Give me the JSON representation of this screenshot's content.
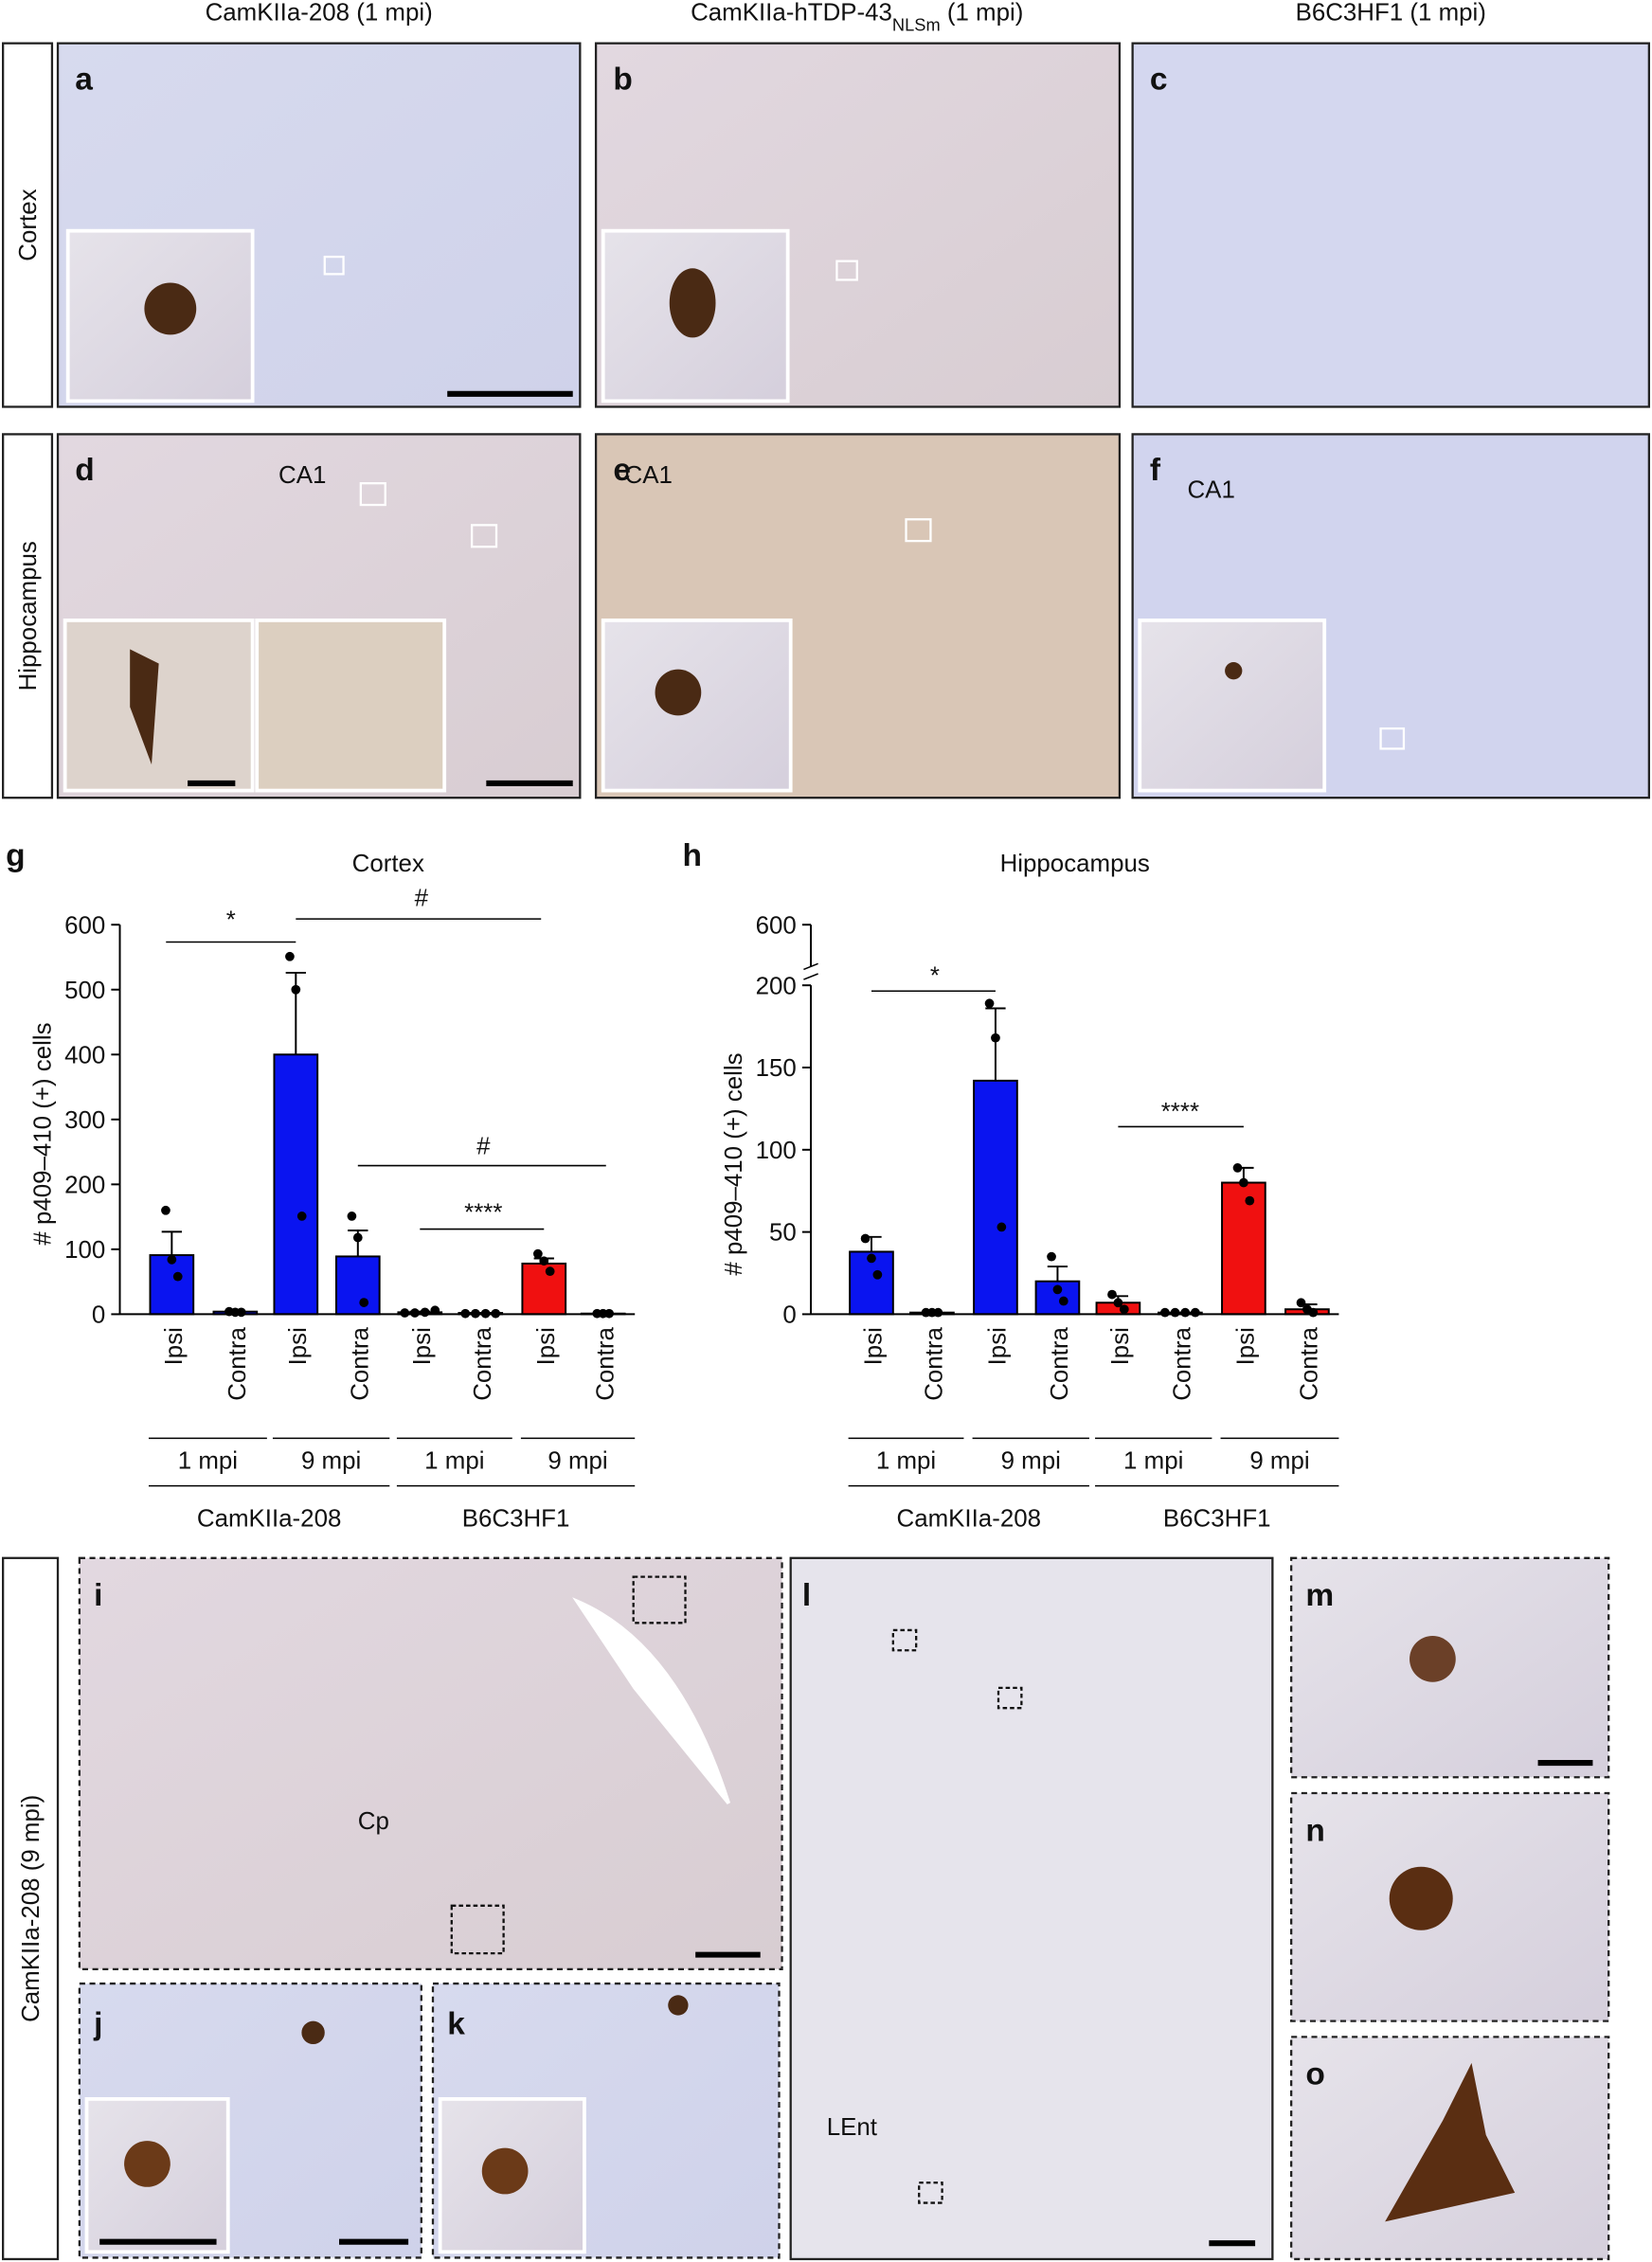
{
  "figure": {
    "column_headers": [
      [
        "CamKIIa-208 (1 mpi)"
      ],
      [
        "CamKIIa-hTDP-43",
        "NLSm",
        " (1 mpi)"
      ],
      [
        "B6C3HF1 (1 mpi)"
      ]
    ],
    "row_labels": [
      "Cortex",
      "Hippocampus",
      "CamKIIa-208 (9 mpi)"
    ],
    "panel_letters": [
      "a",
      "b",
      "c",
      "d",
      "e",
      "f",
      "g",
      "h",
      "i",
      "j",
      "k",
      "l",
      "m",
      "n",
      "o"
    ],
    "region_labels": [
      "CA1",
      "CA1",
      "CA1",
      "Cp",
      "LEnt"
    ]
  },
  "chart_data": [
    {
      "type": "bar",
      "title": "Cortex",
      "ylabel": "# p409–410 (+) cells",
      "categories": [
        "Ipsi",
        "Contra",
        "Ipsi",
        "Contra",
        "Ipsi",
        "Contra",
        "Ipsi",
        "Contra"
      ],
      "groups": [
        "1 mpi",
        "9 mpi",
        "1 mpi",
        "9 mpi"
      ],
      "series": [
        {
          "name": "CamKIIa-208",
          "color": "#0a14f0",
          "values": [
            91,
            4,
            400,
            89,
            null,
            null,
            null,
            null
          ],
          "errors": [
            36,
            1,
            126,
            40,
            null,
            null,
            null,
            null
          ],
          "points": [
            [
              160,
              84,
              58
            ],
            [
              4,
              3,
              3
            ],
            [
              551,
              500,
              151
            ],
            [
              151,
              118,
              18
            ],
            null,
            null,
            null,
            null
          ]
        },
        {
          "name": "B6C3HF1",
          "color": "#f01010",
          "values": [
            null,
            null,
            null,
            null,
            3,
            2,
            78,
            1
          ],
          "errors": [
            null,
            null,
            null,
            null,
            1,
            0,
            8,
            0
          ],
          "points": [
            null,
            null,
            null,
            null,
            [
              2,
              2,
              3,
              6
            ],
            [
              1,
              1,
              1,
              1
            ],
            [
              93,
              82,
              66
            ],
            [
              1,
              1,
              1
            ]
          ]
        }
      ],
      "annotations": [
        "*",
        "#",
        "#",
        "****"
      ],
      "ylim": [
        0,
        600
      ],
      "yticks": [
        0,
        100,
        200,
        300,
        400,
        500,
        600
      ]
    },
    {
      "type": "bar",
      "title": "Hippocampus",
      "ylabel": "# p409–410 (+) cells",
      "categories": [
        "Ipsi",
        "Contra",
        "Ipsi",
        "Contra",
        "Ipsi",
        "Contra",
        "Ipsi",
        "Contra"
      ],
      "groups": [
        "1 mpi",
        "9 mpi",
        "1 mpi",
        "9 mpi"
      ],
      "series": [
        {
          "name": "CamKIIa-208",
          "color": "#0a14f0",
          "values": [
            38,
            1,
            142,
            20,
            null,
            null,
            null,
            null
          ],
          "errors": [
            9,
            0,
            44,
            9,
            null,
            null,
            null,
            null
          ],
          "points": [
            [
              46,
              34,
              24
            ],
            [
              1,
              1,
              1
            ],
            [
              189,
              168,
              53
            ],
            [
              35,
              15,
              8
            ],
            null,
            null,
            null,
            null
          ]
        },
        {
          "name": "B6C3HF1",
          "color": "#f01010",
          "values": [
            null,
            null,
            null,
            null,
            7,
            1,
            80,
            3
          ],
          "errors": [
            null,
            null,
            null,
            null,
            4,
            0,
            9,
            3
          ],
          "points": [
            null,
            null,
            null,
            null,
            [
              12,
              7,
              3
            ],
            [
              1,
              1,
              1,
              1
            ],
            [
              89,
              80,
              69
            ],
            [
              7,
              3,
              1
            ]
          ]
        }
      ],
      "annotations": [
        "*",
        "****"
      ],
      "ylim": [
        0,
        200
      ],
      "yticks": [
        0,
        50,
        100,
        150,
        200
      ],
      "yticks_upper": [
        600
      ]
    }
  ]
}
